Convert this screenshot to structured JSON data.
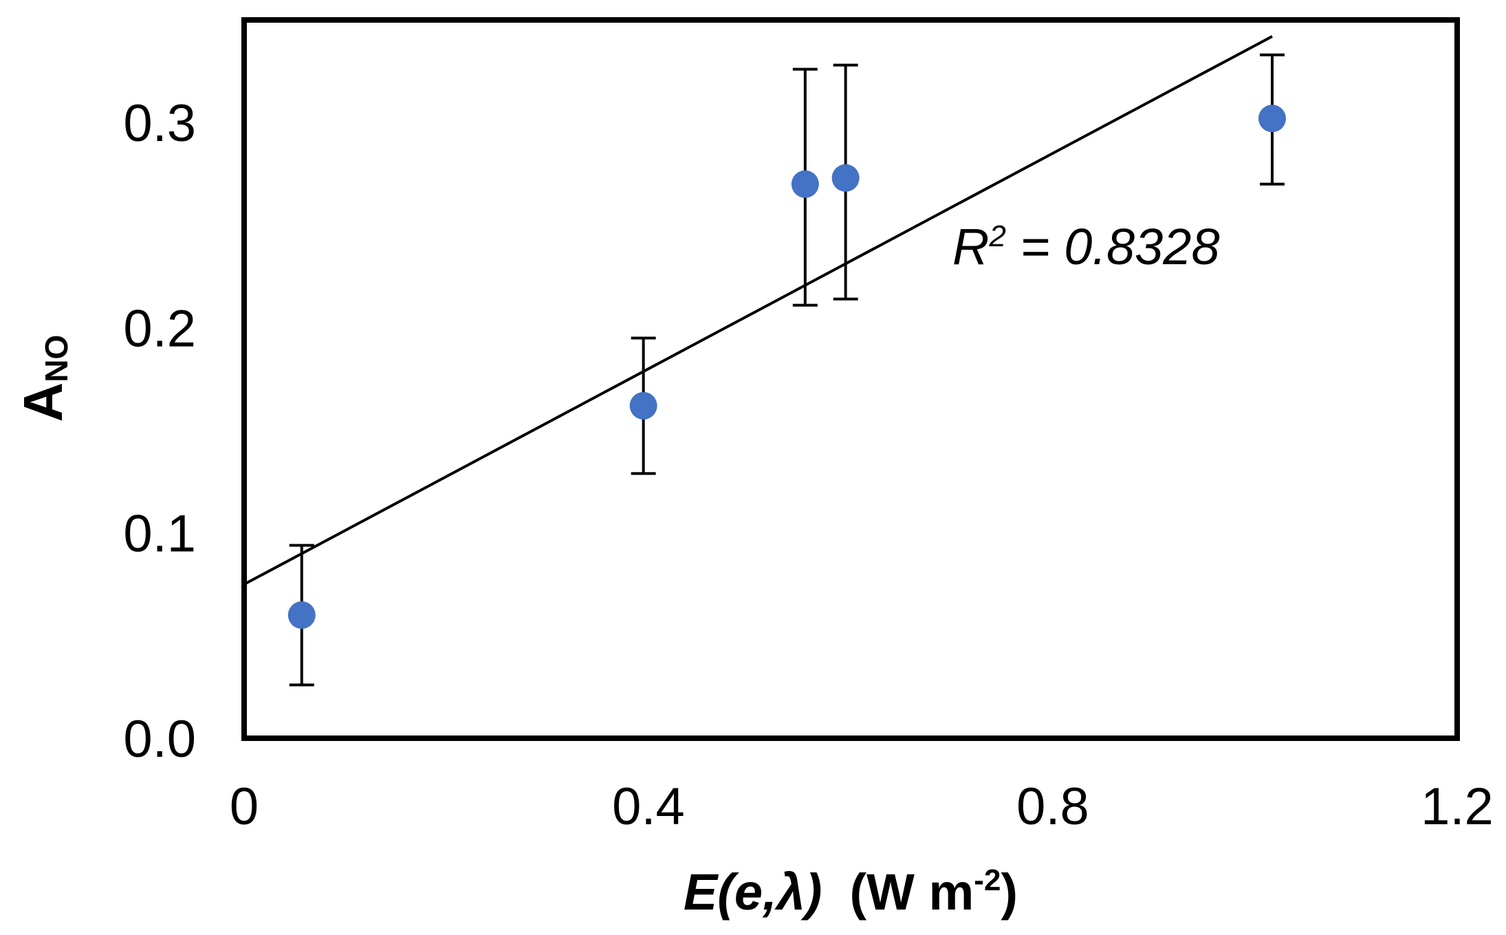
{
  "chart_data": {
    "type": "scatter",
    "xlabel_main": "E(e,λ)",
    "xlabel_units": "(W m",
    "xlabel_units_sup": "-2",
    "xlabel_units_close": ")",
    "ylabel_main": "A",
    "ylabel_sub": "NO",
    "xlim": [
      0,
      1.2
    ],
    "ylim": [
      0,
      0.35
    ],
    "x_ticks": [
      0,
      0.4,
      0.8,
      1.2
    ],
    "x_tick_labels": [
      "0",
      "0.4",
      "0.8",
      "1.2"
    ],
    "y_ticks": [
      0.0,
      0.1,
      0.2,
      0.3
    ],
    "y_tick_labels": [
      "0.0",
      "0.1",
      "0.2",
      "0.3"
    ],
    "grid": false,
    "points": [
      {
        "x": 0.057,
        "y": 0.06,
        "err_low": 0.026,
        "err_high": 0.094
      },
      {
        "x": 0.395,
        "y": 0.162,
        "err_low": 0.129,
        "err_high": 0.195
      },
      {
        "x": 0.555,
        "y": 0.27,
        "err_low": 0.211,
        "err_high": 0.326
      },
      {
        "x": 0.595,
        "y": 0.273,
        "err_low": 0.214,
        "err_high": 0.328
      },
      {
        "x": 1.017,
        "y": 0.302,
        "err_low": 0.27,
        "err_high": 0.333
      }
    ],
    "point_color": "#4472C4",
    "trendline": {
      "type": "linear",
      "x_start": 0,
      "y_start": 0.075,
      "x_end": 1.017,
      "y_end": 0.342
    },
    "annotation": {
      "r2_prefix": "R",
      "r2_sup": "2",
      "r2_value": " = 0.8328"
    }
  }
}
